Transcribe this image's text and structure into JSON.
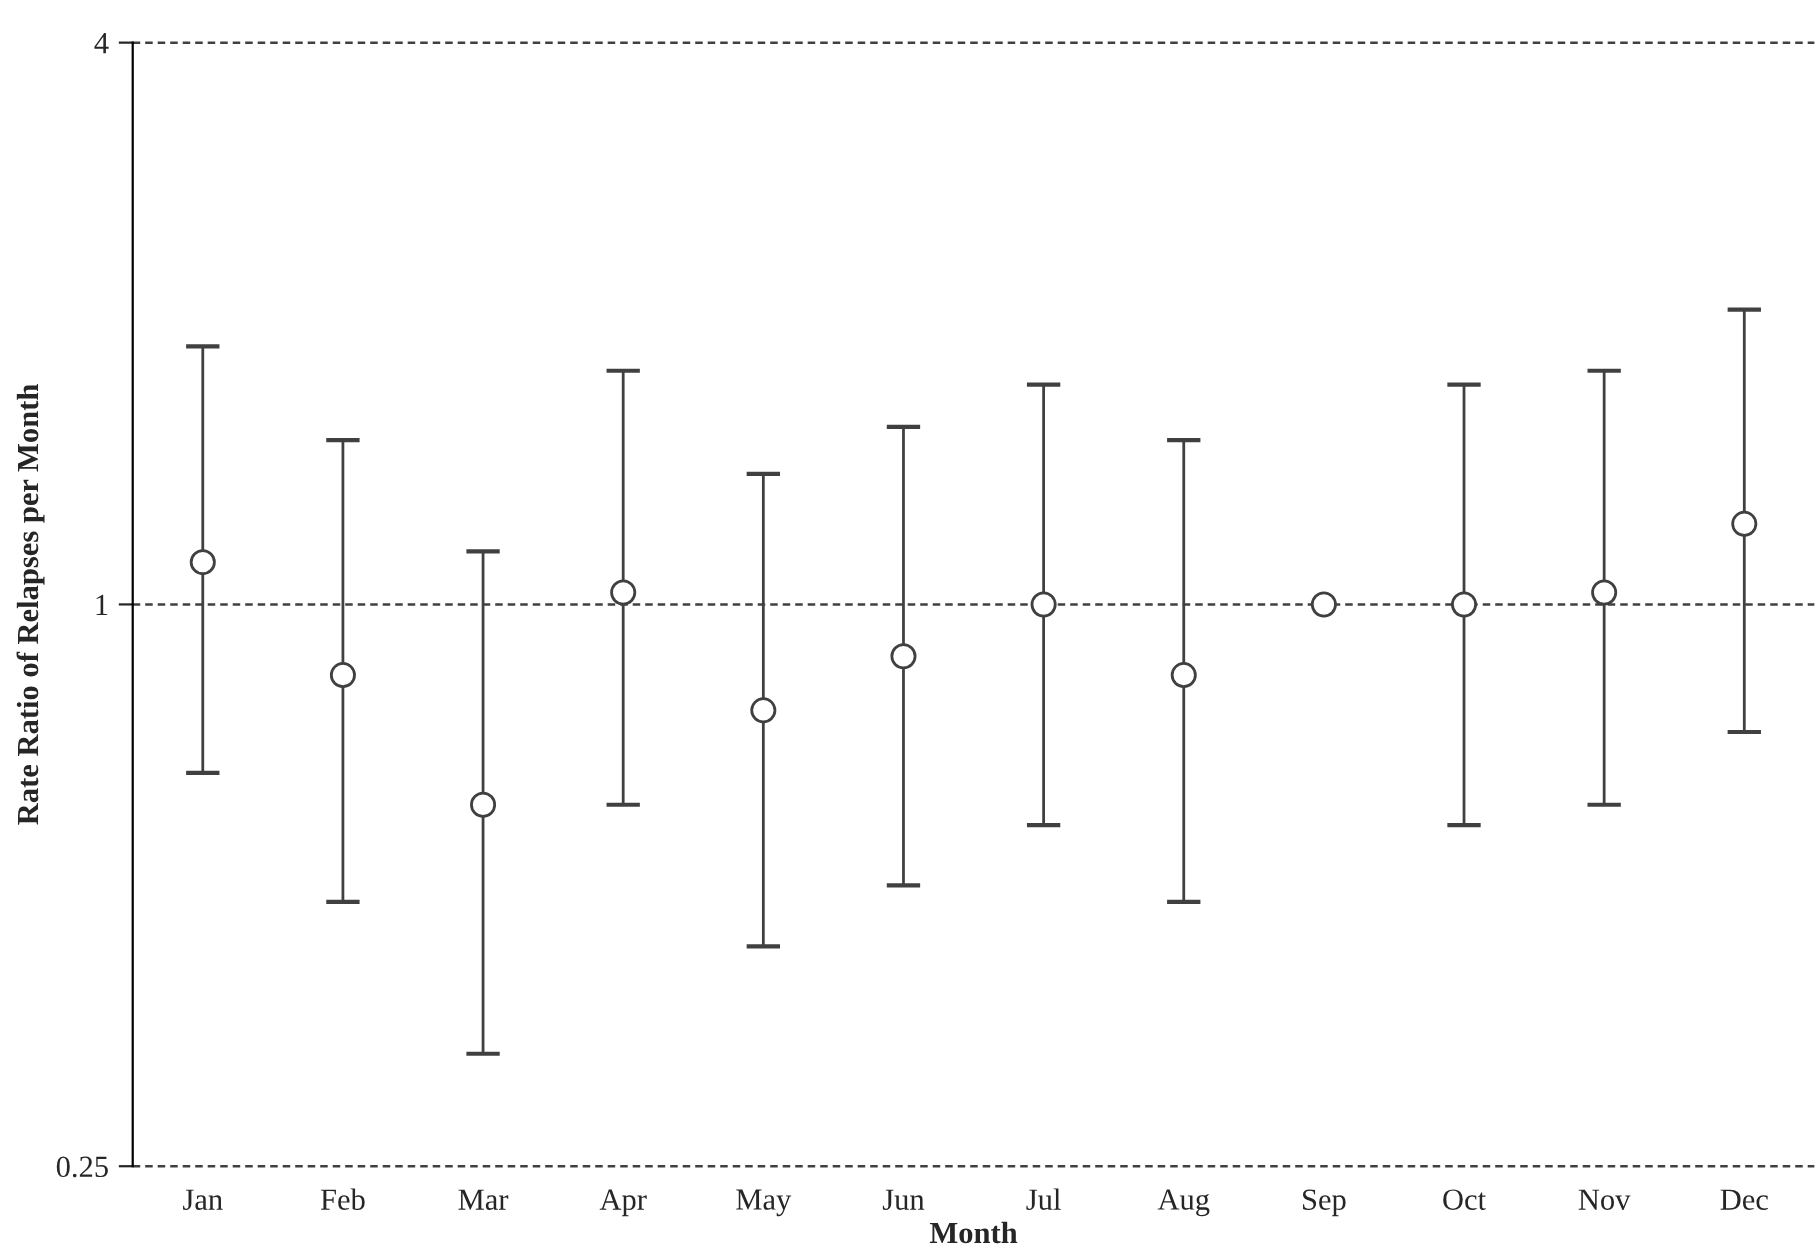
{
  "chart_data": {
    "type": "scatter",
    "xlabel": "Month",
    "ylabel": "Rate Ratio of Relapses per Month",
    "categories": [
      "Jan",
      "Feb",
      "Mar",
      "Apr",
      "May",
      "Jun",
      "Jul",
      "Aug",
      "Sep",
      "Oct",
      "Nov",
      "Dec"
    ],
    "series": [
      {
        "color": "#404040",
        "values": [
          1.11,
          0.84,
          0.61,
          1.03,
          0.77,
          0.88,
          1.0,
          0.84,
          1.0,
          1.0,
          1.03,
          1.22
        ],
        "errors": [
          [
            0.66,
            1.89
          ],
          [
            0.48,
            1.5
          ],
          [
            0.33,
            1.14
          ],
          [
            0.61,
            1.78
          ],
          [
            0.43,
            1.38
          ],
          [
            0.5,
            1.55
          ],
          [
            0.58,
            1.72
          ],
          [
            0.48,
            1.5
          ],
          null,
          [
            0.58,
            1.72
          ],
          [
            0.61,
            1.78
          ],
          [
            0.73,
            2.07
          ]
        ]
      }
    ],
    "log": "y",
    "ylim": [
      0.25,
      4
    ],
    "yticks": [
      0.25,
      1,
      4
    ],
    "marker": "circle",
    "grid": "y",
    "line_style": "dashed",
    "legend": false
  }
}
